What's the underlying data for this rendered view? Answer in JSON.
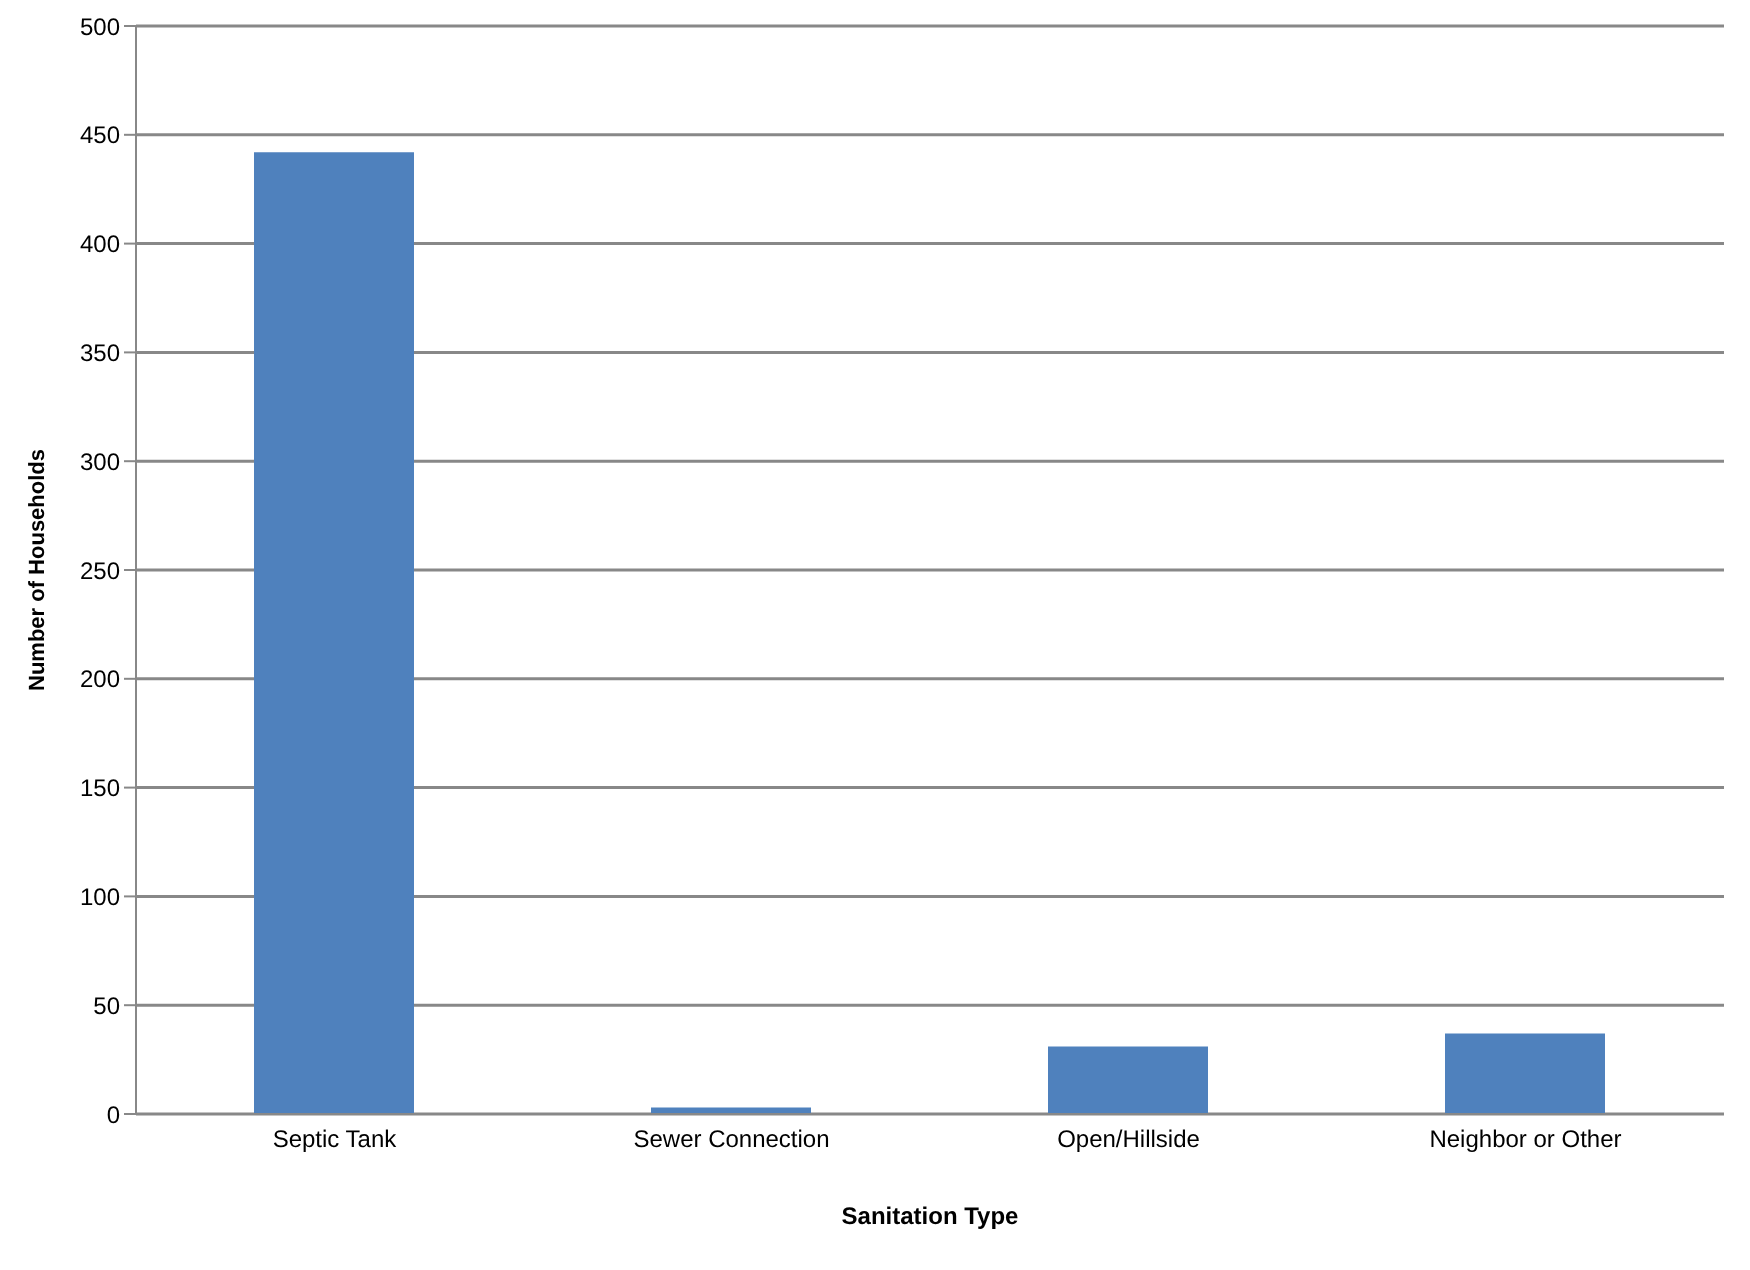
{
  "chart_data": {
    "type": "bar",
    "xlabel": "Sanitation Type",
    "ylabel": "Number of Households",
    "categories": [
      "Septic Tank",
      "Sewer Connection",
      "Open/Hillside",
      "Neighbor or Other"
    ],
    "values": [
      442,
      3,
      31,
      37
    ],
    "color": "#4f81bd",
    "ylim": [
      0,
      500
    ],
    "yticks": [
      0,
      50,
      100,
      150,
      200,
      250,
      300,
      350,
      400,
      450,
      500
    ],
    "grid": "y",
    "legend": false
  }
}
